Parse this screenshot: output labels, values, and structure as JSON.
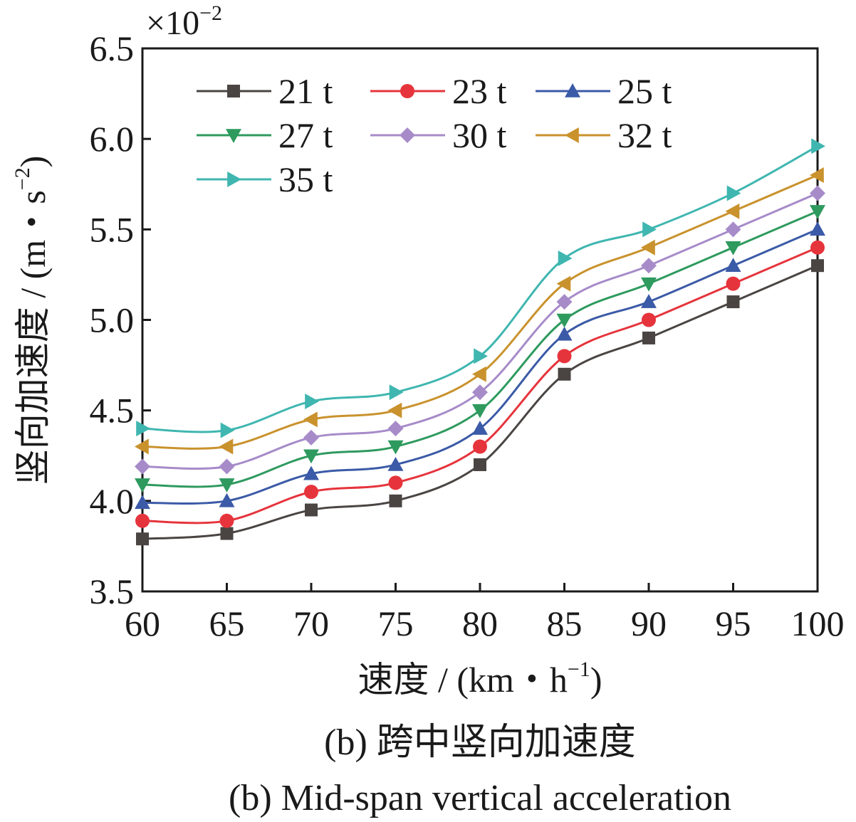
{
  "chart_data": {
    "type": "line",
    "xlabel": "速度 / (km・h",
    "xlabel_sup": "−1",
    "xlabel_close": ")",
    "ylabel": "竖向加速度 / (m・s",
    "ylabel_sup": "−2",
    "ylabel_close": ")",
    "y_multiplier": "×10",
    "y_multiplier_exp": "−2",
    "x": [
      60,
      65,
      70,
      75,
      80,
      85,
      90,
      95,
      100
    ],
    "x_ticks": [
      "60",
      "65",
      "70",
      "75",
      "80",
      "85",
      "90",
      "95",
      "100"
    ],
    "y_ticks": [
      "3.5",
      "4.0",
      "4.5",
      "5.0",
      "5.5",
      "6.0",
      "6.5"
    ],
    "xlim": [
      60,
      100
    ],
    "ylim": [
      3.5,
      6.5
    ],
    "grid": false,
    "legend_position": "top-left",
    "series": [
      {
        "name": "21 t",
        "color": "#4a4543",
        "marker": "square",
        "values": [
          3.79,
          3.82,
          3.95,
          4.0,
          4.2,
          4.7,
          4.9,
          5.1,
          5.3
        ]
      },
      {
        "name": "23 t",
        "color": "#e6343c",
        "marker": "circle",
        "values": [
          3.89,
          3.89,
          4.05,
          4.1,
          4.3,
          4.8,
          5.0,
          5.2,
          5.4
        ]
      },
      {
        "name": "25 t",
        "color": "#3b5aa7",
        "marker": "triangle-up",
        "values": [
          3.99,
          4.0,
          4.15,
          4.2,
          4.4,
          4.92,
          5.1,
          5.3,
          5.5
        ]
      },
      {
        "name": "27 t",
        "color": "#2e9a5e",
        "marker": "triangle-down",
        "values": [
          4.09,
          4.09,
          4.25,
          4.3,
          4.5,
          5.0,
          5.2,
          5.4,
          5.6
        ]
      },
      {
        "name": "30 t",
        "color": "#a78bc9",
        "marker": "diamond",
        "values": [
          4.19,
          4.19,
          4.35,
          4.4,
          4.6,
          5.1,
          5.3,
          5.5,
          5.7
        ]
      },
      {
        "name": "32 t",
        "color": "#c9922d",
        "marker": "triangle-left",
        "values": [
          4.3,
          4.3,
          4.45,
          4.5,
          4.7,
          5.2,
          5.4,
          5.6,
          5.8
        ]
      },
      {
        "name": "35 t",
        "color": "#3fb6b0",
        "marker": "triangle-right",
        "values": [
          4.4,
          4.39,
          4.55,
          4.6,
          4.8,
          5.34,
          5.5,
          5.7,
          5.96
        ]
      }
    ]
  },
  "captions": {
    "zh": "(b)  跨中竖向加速度",
    "en": "(b)  Mid-span vertical acceleration"
  }
}
